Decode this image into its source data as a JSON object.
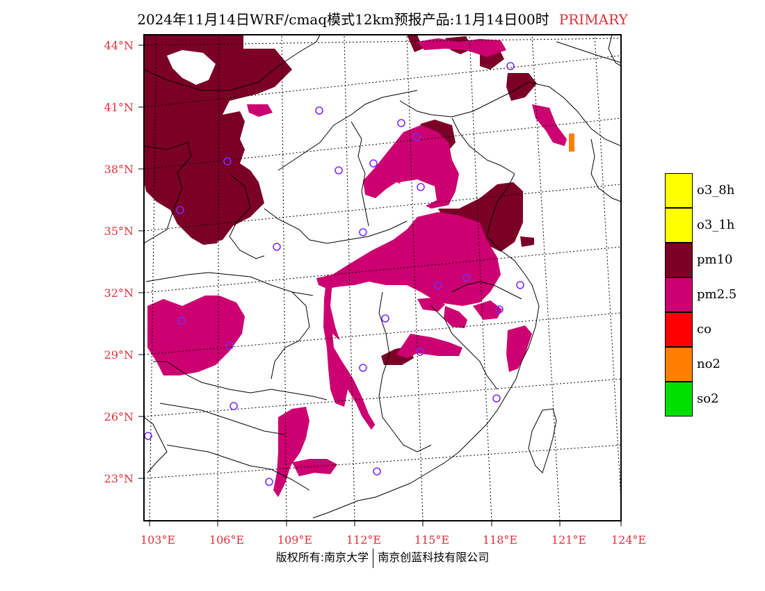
{
  "header": {
    "title": "2024年11月14日WRF/cmaq模式12km预报产品:11月14日00时",
    "tag": "PRIMARY"
  },
  "axes": {
    "lat_labels": [
      "44°N",
      "41°N",
      "38°N",
      "35°N",
      "32°N",
      "29°N",
      "26°N",
      "23°N"
    ],
    "lon_labels": [
      "103°E",
      "106°E",
      "109°E",
      "112°E",
      "115°E",
      "118°E",
      "121°E",
      "124°E"
    ]
  },
  "legend": {
    "items": [
      {
        "label": "o3_8h",
        "color": "#ffff00"
      },
      {
        "label": "o3_1h",
        "color": "#ffff00"
      },
      {
        "label": "pm10",
        "color": "#7b0028"
      },
      {
        "label": "pm2.5",
        "color": "#cc0070"
      },
      {
        "label": "co",
        "color": "#ff0000"
      },
      {
        "label": "no2",
        "color": "#ff7f00"
      },
      {
        "label": "so2",
        "color": "#00e000"
      }
    ]
  },
  "footer": {
    "left": "版权所有:南京大学",
    "right": "南京创蓝科技有限公司"
  },
  "colors": {
    "pm10": "#7b0028",
    "pm25": "#cc0070",
    "no2": "#ff7f00",
    "station": "#7a2cff",
    "label": "#e0303a"
  }
}
